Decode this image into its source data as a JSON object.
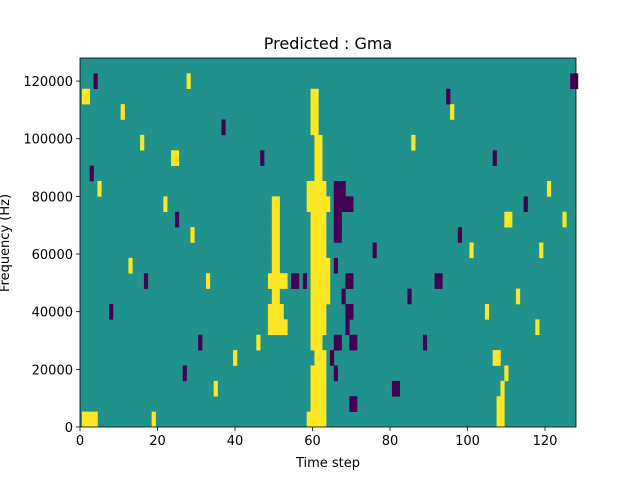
{
  "chart_data": {
    "type": "heatmap",
    "title": "Predicted : Gma",
    "xlabel": "Time step",
    "ylabel": "Frequency (Hz)",
    "xlim": [
      0,
      128
    ],
    "ylim": [
      0,
      128000
    ],
    "x_ticks": [
      "0",
      "20",
      "40",
      "60",
      "80",
      "100",
      "120"
    ],
    "y_ticks": [
      "0",
      "20000",
      "40000",
      "60000",
      "80000",
      "100000",
      "120000"
    ],
    "n_time_steps": 128,
    "n_freq_bins": 24,
    "bin_height_hz": 5333.33,
    "colormap": "viridis",
    "value_levels": [
      -1,
      0,
      1
    ],
    "level_colors": {
      "-1": "#440154",
      "0": "#21918c",
      "1": "#fde725"
    },
    "background_value": 0,
    "grid": false,
    "cells": [
      {
        "t": 1,
        "f": 0,
        "v": 1
      },
      {
        "t": 2,
        "f": 0,
        "v": 1
      },
      {
        "t": 3,
        "f": 0,
        "v": 1
      },
      {
        "t": 4,
        "f": 0,
        "v": 1
      },
      {
        "t": 19,
        "f": 0,
        "v": 1
      },
      {
        "t": 59,
        "f": 0,
        "v": 1
      },
      {
        "t": 60,
        "f": 0,
        "v": 1
      },
      {
        "t": 61,
        "f": 0,
        "v": 1
      },
      {
        "t": 62,
        "f": 0,
        "v": 1
      },
      {
        "t": 63,
        "f": 0,
        "v": 1
      },
      {
        "t": 108,
        "f": 0,
        "v": 1
      },
      {
        "t": 109,
        "f": 0,
        "v": 1
      },
      {
        "t": 60,
        "f": 1,
        "v": 1
      },
      {
        "t": 61,
        "f": 1,
        "v": 1
      },
      {
        "t": 62,
        "f": 1,
        "v": 1
      },
      {
        "t": 63,
        "f": 1,
        "v": 1
      },
      {
        "t": 70,
        "f": 1,
        "v": -1
      },
      {
        "t": 71,
        "f": 1,
        "v": -1
      },
      {
        "t": 108,
        "f": 1,
        "v": 1
      },
      {
        "t": 109,
        "f": 1,
        "v": 1
      },
      {
        "t": 60,
        "f": 2,
        "v": 1
      },
      {
        "t": 61,
        "f": 2,
        "v": 1
      },
      {
        "t": 62,
        "f": 2,
        "v": 1
      },
      {
        "t": 63,
        "f": 2,
        "v": 1
      },
      {
        "t": 81,
        "f": 2,
        "v": -1
      },
      {
        "t": 82,
        "f": 2,
        "v": -1
      },
      {
        "t": 109,
        "f": 2,
        "v": 1
      },
      {
        "t": 60,
        "f": 3,
        "v": 1
      },
      {
        "t": 61,
        "f": 3,
        "v": 1
      },
      {
        "t": 62,
        "f": 3,
        "v": 1
      },
      {
        "t": 63,
        "f": 3,
        "v": 1
      },
      {
        "t": 66,
        "f": 3,
        "v": -1
      },
      {
        "t": 110,
        "f": 3,
        "v": 1
      },
      {
        "t": 61,
        "f": 4,
        "v": 1
      },
      {
        "t": 62,
        "f": 4,
        "v": 1
      },
      {
        "t": 63,
        "f": 4,
        "v": 1
      },
      {
        "t": 65,
        "f": 4,
        "v": -1
      },
      {
        "t": 107,
        "f": 4,
        "v": 1
      },
      {
        "t": 108,
        "f": 4,
        "v": 1
      },
      {
        "t": 60,
        "f": 5,
        "v": 1
      },
      {
        "t": 61,
        "f": 5,
        "v": 1
      },
      {
        "t": 62,
        "f": 5,
        "v": 1
      },
      {
        "t": 66,
        "f": 5,
        "v": -1
      },
      {
        "t": 67,
        "f": 5,
        "v": -1
      },
      {
        "t": 70,
        "f": 5,
        "v": -1
      },
      {
        "t": 71,
        "f": 5,
        "v": -1
      },
      {
        "t": 49,
        "f": 6,
        "v": 1
      },
      {
        "t": 50,
        "f": 6,
        "v": 1
      },
      {
        "t": 51,
        "f": 6,
        "v": 1
      },
      {
        "t": 52,
        "f": 6,
        "v": 1
      },
      {
        "t": 53,
        "f": 6,
        "v": 1
      },
      {
        "t": 60,
        "f": 6,
        "v": 1
      },
      {
        "t": 61,
        "f": 6,
        "v": 1
      },
      {
        "t": 62,
        "f": 6,
        "v": 1
      },
      {
        "t": 63,
        "f": 6,
        "v": 1
      },
      {
        "t": 69,
        "f": 6,
        "v": -1
      },
      {
        "t": 49,
        "f": 7,
        "v": 1
      },
      {
        "t": 50,
        "f": 7,
        "v": 1
      },
      {
        "t": 51,
        "f": 7,
        "v": 1
      },
      {
        "t": 52,
        "f": 7,
        "v": 1
      },
      {
        "t": 60,
        "f": 7,
        "v": 1
      },
      {
        "t": 61,
        "f": 7,
        "v": 1
      },
      {
        "t": 62,
        "f": 7,
        "v": 1
      },
      {
        "t": 63,
        "f": 7,
        "v": 1
      },
      {
        "t": 69,
        "f": 7,
        "v": -1
      },
      {
        "t": 70,
        "f": 7,
        "v": -1
      },
      {
        "t": 50,
        "f": 8,
        "v": 1
      },
      {
        "t": 51,
        "f": 8,
        "v": 1
      },
      {
        "t": 60,
        "f": 8,
        "v": 1
      },
      {
        "t": 61,
        "f": 8,
        "v": 1
      },
      {
        "t": 62,
        "f": 8,
        "v": 1
      },
      {
        "t": 63,
        "f": 8,
        "v": 1
      },
      {
        "t": 64,
        "f": 8,
        "v": 1
      },
      {
        "t": 68,
        "f": 8,
        "v": -1
      },
      {
        "t": 49,
        "f": 9,
        "v": 1
      },
      {
        "t": 50,
        "f": 9,
        "v": 1
      },
      {
        "t": 51,
        "f": 9,
        "v": 1
      },
      {
        "t": 52,
        "f": 9,
        "v": 1
      },
      {
        "t": 53,
        "f": 9,
        "v": 1
      },
      {
        "t": 55,
        "f": 9,
        "v": -1
      },
      {
        "t": 56,
        "f": 9,
        "v": -1
      },
      {
        "t": 58,
        "f": 9,
        "v": -1
      },
      {
        "t": 60,
        "f": 9,
        "v": 1
      },
      {
        "t": 61,
        "f": 9,
        "v": 1
      },
      {
        "t": 62,
        "f": 9,
        "v": 1
      },
      {
        "t": 63,
        "f": 9,
        "v": 1
      },
      {
        "t": 64,
        "f": 9,
        "v": 1
      },
      {
        "t": 69,
        "f": 9,
        "v": -1
      },
      {
        "t": 70,
        "f": 9,
        "v": -1
      },
      {
        "t": 92,
        "f": 9,
        "v": -1
      },
      {
        "t": 93,
        "f": 9,
        "v": -1
      },
      {
        "t": 50,
        "f": 10,
        "v": 1
      },
      {
        "t": 51,
        "f": 10,
        "v": 1
      },
      {
        "t": 60,
        "f": 10,
        "v": 1
      },
      {
        "t": 61,
        "f": 10,
        "v": 1
      },
      {
        "t": 62,
        "f": 10,
        "v": 1
      },
      {
        "t": 63,
        "f": 10,
        "v": 1
      },
      {
        "t": 64,
        "f": 10,
        "v": 1
      },
      {
        "t": 66,
        "f": 10,
        "v": -1
      },
      {
        "t": 50,
        "f": 11,
        "v": 1
      },
      {
        "t": 51,
        "f": 11,
        "v": 1
      },
      {
        "t": 60,
        "f": 11,
        "v": 1
      },
      {
        "t": 61,
        "f": 11,
        "v": 1
      },
      {
        "t": 62,
        "f": 11,
        "v": 1
      },
      {
        "t": 63,
        "f": 11,
        "v": 1
      },
      {
        "t": 50,
        "f": 12,
        "v": 1
      },
      {
        "t": 51,
        "f": 12,
        "v": 1
      },
      {
        "t": 60,
        "f": 12,
        "v": 1
      },
      {
        "t": 61,
        "f": 12,
        "v": 1
      },
      {
        "t": 62,
        "f": 12,
        "v": 1
      },
      {
        "t": 63,
        "f": 12,
        "v": 1
      },
      {
        "t": 66,
        "f": 12,
        "v": -1
      },
      {
        "t": 67,
        "f": 12,
        "v": -1
      },
      {
        "t": 50,
        "f": 13,
        "v": 1
      },
      {
        "t": 51,
        "f": 13,
        "v": 1
      },
      {
        "t": 60,
        "f": 13,
        "v": 1
      },
      {
        "t": 61,
        "f": 13,
        "v": 1
      },
      {
        "t": 62,
        "f": 13,
        "v": 1
      },
      {
        "t": 63,
        "f": 13,
        "v": 1
      },
      {
        "t": 66,
        "f": 13,
        "v": -1
      },
      {
        "t": 67,
        "f": 13,
        "v": -1
      },
      {
        "t": 110,
        "f": 13,
        "v": 1
      },
      {
        "t": 111,
        "f": 13,
        "v": 1
      },
      {
        "t": 50,
        "f": 14,
        "v": 1
      },
      {
        "t": 51,
        "f": 14,
        "v": 1
      },
      {
        "t": 59,
        "f": 14,
        "v": 1
      },
      {
        "t": 60,
        "f": 14,
        "v": 1
      },
      {
        "t": 61,
        "f": 14,
        "v": 1
      },
      {
        "t": 62,
        "f": 14,
        "v": 1
      },
      {
        "t": 63,
        "f": 14,
        "v": 1
      },
      {
        "t": 64,
        "f": 14,
        "v": 1
      },
      {
        "t": 66,
        "f": 14,
        "v": -1
      },
      {
        "t": 67,
        "f": 14,
        "v": -1
      },
      {
        "t": 68,
        "f": 14,
        "v": -1
      },
      {
        "t": 69,
        "f": 14,
        "v": -1
      },
      {
        "t": 70,
        "f": 14,
        "v": -1
      },
      {
        "t": 59,
        "f": 15,
        "v": 1
      },
      {
        "t": 60,
        "f": 15,
        "v": 1
      },
      {
        "t": 61,
        "f": 15,
        "v": 1
      },
      {
        "t": 62,
        "f": 15,
        "v": 1
      },
      {
        "t": 63,
        "f": 15,
        "v": 1
      },
      {
        "t": 66,
        "f": 15,
        "v": -1
      },
      {
        "t": 67,
        "f": 15,
        "v": -1
      },
      {
        "t": 68,
        "f": 15,
        "v": -1
      },
      {
        "t": 61,
        "f": 16,
        "v": 1
      },
      {
        "t": 62,
        "f": 16,
        "v": 1
      },
      {
        "t": 61,
        "f": 17,
        "v": 1
      },
      {
        "t": 62,
        "f": 17,
        "v": 1
      },
      {
        "t": 24,
        "f": 17,
        "v": 1
      },
      {
        "t": 25,
        "f": 17,
        "v": 1
      },
      {
        "t": 61,
        "f": 18,
        "v": 1
      },
      {
        "t": 62,
        "f": 18,
        "v": 1
      },
      {
        "t": 60,
        "f": 19,
        "v": 1
      },
      {
        "t": 61,
        "f": 19,
        "v": 1
      },
      {
        "t": 60,
        "f": 20,
        "v": 1
      },
      {
        "t": 61,
        "f": 20,
        "v": 1
      },
      {
        "t": 60,
        "f": 21,
        "v": 1
      },
      {
        "t": 61,
        "f": 21,
        "v": 1
      },
      {
        "t": 1,
        "f": 21,
        "v": 1
      },
      {
        "t": 2,
        "f": 21,
        "v": 1
      },
      {
        "t": 127,
        "f": 22,
        "v": -1
      },
      {
        "t": 128,
        "f": 22,
        "v": -1
      },
      {
        "t": 5,
        "f": 15,
        "v": 1
      },
      {
        "t": 35,
        "f": 2,
        "v": 1
      },
      {
        "t": 40,
        "f": 4,
        "v": 1
      },
      {
        "t": 46,
        "f": 5,
        "v": 1
      },
      {
        "t": 105,
        "f": 7,
        "v": 1
      },
      {
        "t": 113,
        "f": 8,
        "v": 1
      },
      {
        "t": 119,
        "f": 11,
        "v": 1
      },
      {
        "t": 125,
        "f": 13,
        "v": 1
      },
      {
        "t": 33,
        "f": 9,
        "v": 1
      },
      {
        "t": 29,
        "f": 12,
        "v": 1
      },
      {
        "t": 13,
        "f": 10,
        "v": 1
      },
      {
        "t": 22,
        "f": 14,
        "v": 1
      },
      {
        "t": 16,
        "f": 18,
        "v": 1
      },
      {
        "t": 11,
        "f": 20,
        "v": 1
      },
      {
        "t": 28,
        "f": 22,
        "v": 1
      },
      {
        "t": 86,
        "f": 18,
        "v": 1
      },
      {
        "t": 96,
        "f": 20,
        "v": 1
      },
      {
        "t": 118,
        "f": 6,
        "v": 1
      },
      {
        "t": 121,
        "f": 15,
        "v": 1
      },
      {
        "t": 101,
        "f": 11,
        "v": 1
      },
      {
        "t": 27,
        "f": 3,
        "v": -1
      },
      {
        "t": 31,
        "f": 5,
        "v": -1
      },
      {
        "t": 8,
        "f": 7,
        "v": -1
      },
      {
        "t": 17,
        "f": 9,
        "v": -1
      },
      {
        "t": 25,
        "f": 13,
        "v": -1
      },
      {
        "t": 3,
        "f": 16,
        "v": -1
      },
      {
        "t": 37,
        "f": 19,
        "v": -1
      },
      {
        "t": 47,
        "f": 17,
        "v": -1
      },
      {
        "t": 76,
        "f": 11,
        "v": -1
      },
      {
        "t": 85,
        "f": 8,
        "v": -1
      },
      {
        "t": 89,
        "f": 5,
        "v": -1
      },
      {
        "t": 98,
        "f": 12,
        "v": -1
      },
      {
        "t": 115,
        "f": 14,
        "v": -1
      },
      {
        "t": 107,
        "f": 17,
        "v": -1
      },
      {
        "t": 95,
        "f": 21,
        "v": -1
      },
      {
        "t": 4,
        "f": 22,
        "v": -1
      }
    ]
  }
}
